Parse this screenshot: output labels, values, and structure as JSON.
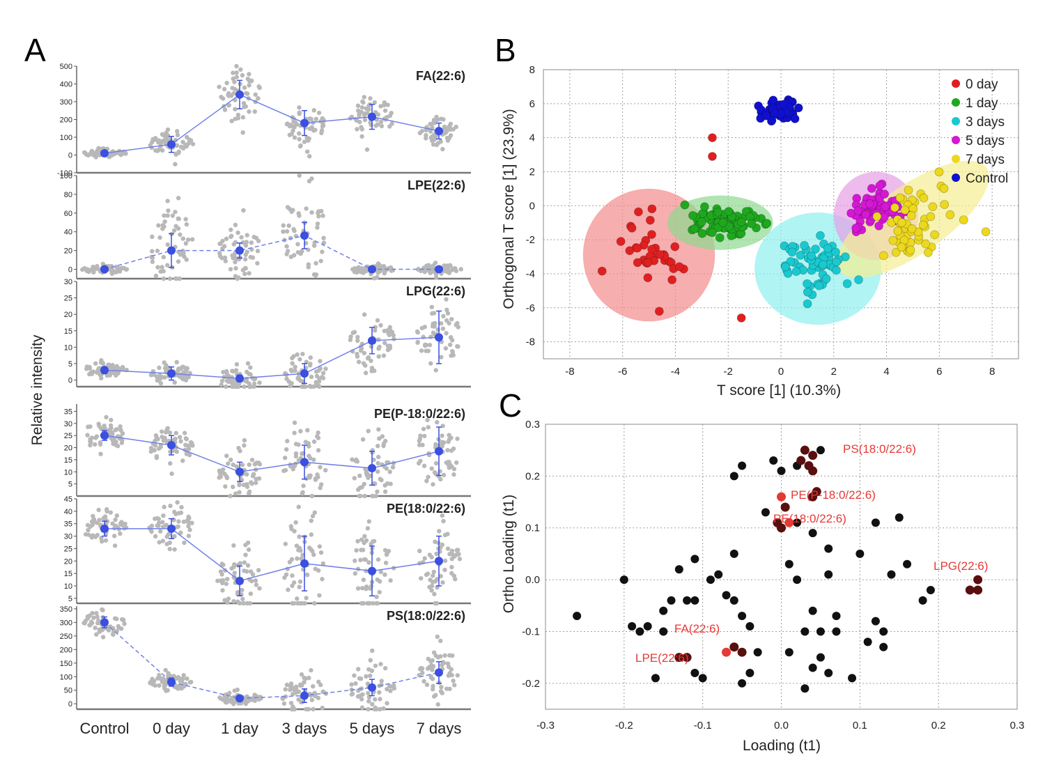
{
  "figure": {
    "panel_labels": [
      "A",
      "B",
      "C"
    ],
    "colors": {
      "line_blue": "#3b4fe0",
      "dot_gray": "#b8b8b8",
      "c_black": "#111111",
      "c_dark": "#5a0f0f",
      "c_red": "#e53935"
    }
  },
  "chart_data": [
    {
      "id": "A",
      "type": "line",
      "title": "Panel A",
      "ylabel": "Relative intensity",
      "categories": [
        "Control",
        "0 day",
        "1 day",
        "3 days",
        "5 days",
        "7 days"
      ],
      "subplots": [
        {
          "name": "FA(22:6)",
          "ylim": [
            -100,
            500
          ],
          "ticks": [
            -100,
            0,
            100,
            200,
            300,
            400,
            500
          ],
          "tick_labels": [
            "-100",
            "0",
            "100",
            "200",
            "300",
            "400",
            "500"
          ],
          "means": [
            10,
            60,
            340,
            180,
            215,
            135
          ],
          "sd": [
            10,
            45,
            80,
            70,
            70,
            45
          ],
          "spread": [
            20,
            60,
            140,
            110,
            110,
            60
          ],
          "dash": false
        },
        {
          "name": "LPE(22:6)",
          "ylim": [
            -10,
            100
          ],
          "ticks": [
            0,
            20,
            40,
            60,
            80,
            100
          ],
          "tick_labels": [
            "0",
            "20",
            "40",
            "60",
            "80",
            "100"
          ],
          "means": [
            0,
            20,
            20,
            36,
            0,
            0
          ],
          "sd": [
            2,
            18,
            8,
            14,
            2,
            2
          ],
          "spread": [
            4,
            45,
            25,
            50,
            5,
            5
          ],
          "dash": true
        },
        {
          "name": "LPG(22:6)",
          "ylim": [
            -2,
            30
          ],
          "ticks": [
            0,
            5,
            10,
            15,
            20,
            25,
            30
          ],
          "tick_labels": [
            "0",
            "5",
            "10",
            "15",
            "20",
            "25",
            "30"
          ],
          "means": [
            3,
            2,
            0.5,
            2,
            12,
            13
          ],
          "sd": [
            1,
            2,
            1,
            3,
            4,
            8
          ],
          "spread": [
            2,
            3,
            4,
            6,
            8,
            9
          ],
          "dash": false
        },
        {
          "name": "PE(P-18:0/22:6)",
          "ylim": [
            0,
            38
          ],
          "ticks": [
            5,
            10,
            15,
            20,
            25,
            30,
            35
          ],
          "tick_labels": [
            "5",
            "10",
            "15",
            "20",
            "25",
            "30",
            "35"
          ],
          "means": [
            25,
            21,
            10,
            14,
            11.5,
            18.5
          ],
          "sd": [
            2,
            4,
            4,
            7,
            7,
            10
          ],
          "spread": [
            6,
            8,
            9,
            16,
            14,
            14
          ],
          "dash": false
        },
        {
          "name": "PE(18:0/22:6)",
          "ylim": [
            3,
            45
          ],
          "ticks": [
            5,
            10,
            15,
            20,
            25,
            30,
            35,
            40,
            45
          ],
          "tick_labels": [
            "5",
            "10",
            "15",
            "20",
            "25",
            "30",
            "35",
            "40",
            "45"
          ],
          "means": [
            33,
            33,
            12,
            19,
            16,
            20
          ],
          "sd": [
            3,
            4,
            6,
            11,
            10,
            10
          ],
          "spread": [
            7,
            9,
            14,
            20,
            16,
            14
          ],
          "dash": false
        },
        {
          "name": "PS(18:0/22:6)",
          "ylim": [
            -20,
            360
          ],
          "ticks": [
            0,
            50,
            100,
            150,
            200,
            250,
            300,
            350
          ],
          "tick_labels": [
            "0",
            "50",
            "100",
            "150",
            "200",
            "250",
            "300",
            "350"
          ],
          "means": [
            300,
            80,
            20,
            30,
            60,
            115
          ],
          "sd": [
            20,
            15,
            10,
            25,
            30,
            40
          ],
          "spread": [
            40,
            30,
            20,
            90,
            90,
            80
          ],
          "dash": true
        }
      ]
    },
    {
      "id": "B",
      "type": "scatter",
      "xlabel": "T score [1] (10.3%)",
      "ylabel": "Orthogonal T score [1] (23.9%)",
      "xlim": [
        -9,
        9
      ],
      "ylim": [
        -9,
        8
      ],
      "xticks": [
        -8,
        -6,
        -4,
        -2,
        0,
        2,
        4,
        6,
        8
      ],
      "yticks": [
        -8,
        -6,
        -4,
        -2,
        0,
        2,
        4,
        6,
        8
      ],
      "series": [
        {
          "name": "0 day",
          "color": "#e02020",
          "center": [
            -5.0,
            -2.8
          ],
          "spread": [
            1.0,
            1.8
          ],
          "n": 36,
          "ellipse": {
            "cx": -5.0,
            "cy": -2.9,
            "rx": 2.5,
            "ry": 3.9,
            "angle": 0,
            "fill": "#f28b8b"
          },
          "extra": [
            [
              -2.6,
              4.0
            ],
            [
              -2.6,
              2.9
            ],
            [
              -1.5,
              -6.6
            ]
          ]
        },
        {
          "name": "1 day",
          "color": "#1fa81f",
          "center": [
            -2.3,
            -0.9
          ],
          "spread": [
            1.2,
            0.7
          ],
          "n": 80,
          "ellipse": {
            "cx": -2.3,
            "cy": -1.0,
            "rx": 2.0,
            "ry": 1.6,
            "angle": 0,
            "fill": "#8fd88f"
          }
        },
        {
          "name": "3 days",
          "color": "#19c9cf",
          "center": [
            1.4,
            -3.6
          ],
          "spread": [
            1.2,
            1.3
          ],
          "n": 60,
          "ellipse": {
            "cx": 1.4,
            "cy": -3.7,
            "rx": 2.4,
            "ry": 3.3,
            "angle": 0,
            "fill": "#8ef0f0"
          }
        },
        {
          "name": "5 days",
          "color": "#d418d4",
          "center": [
            3.6,
            -0.3
          ],
          "spread": [
            0.7,
            0.9
          ],
          "n": 70,
          "ellipse": {
            "cx": 3.6,
            "cy": -0.6,
            "rx": 1.6,
            "ry": 2.6,
            "angle": 0,
            "fill": "#e6a0e6"
          }
        },
        {
          "name": "7 days",
          "color": "#ecd81c",
          "center": [
            5.0,
            -1.0
          ],
          "spread": [
            1.3,
            1.5
          ],
          "n": 56,
          "ellipse": {
            "cx": 5.0,
            "cy": -0.8,
            "rx": 3.4,
            "ry": 2.0,
            "angle": -35,
            "fill": "#f5ee92"
          }
        },
        {
          "name": "Control",
          "color": "#1010d0",
          "center": [
            0.0,
            5.6
          ],
          "spread": [
            0.6,
            0.4
          ],
          "n": 60
        }
      ]
    },
    {
      "id": "C",
      "type": "scatter",
      "xlabel": "Loading (t1)",
      "ylabel": "Ortho Loading (t1)",
      "xlim": [
        -0.3,
        0.3
      ],
      "ylim": [
        -0.25,
        0.3
      ],
      "xticks": [
        -0.3,
        -0.2,
        -0.1,
        0.0,
        0.1,
        0.2,
        0.3
      ],
      "xtick_labels": [
        "-0.3",
        "-0.2",
        "-0.1",
        "0.0",
        "0.1",
        "0.2",
        "0.3"
      ],
      "yticks": [
        -0.2,
        -0.1,
        0.0,
        0.1,
        0.2,
        0.3
      ],
      "ytick_labels": [
        "-0.2",
        "-0.1",
        "0.0",
        "0.1",
        "0.2",
        "0.3"
      ],
      "points": [
        [
          -0.26,
          -0.07
        ],
        [
          -0.2,
          0.0
        ],
        [
          -0.19,
          -0.09
        ],
        [
          -0.18,
          -0.1
        ],
        [
          -0.17,
          -0.09
        ],
        [
          -0.16,
          -0.19
        ],
        [
          -0.15,
          -0.06
        ],
        [
          -0.14,
          -0.04
        ],
        [
          -0.13,
          0.02
        ],
        [
          -0.12,
          -0.04
        ],
        [
          -0.11,
          -0.04
        ],
        [
          -0.11,
          -0.18
        ],
        [
          -0.1,
          -0.19
        ],
        [
          -0.11,
          0.04
        ],
        [
          -0.09,
          0.0
        ],
        [
          -0.08,
          0.01
        ],
        [
          -0.07,
          -0.03
        ],
        [
          -0.06,
          0.05
        ],
        [
          -0.06,
          -0.04
        ],
        [
          -0.05,
          -0.07
        ],
        [
          -0.05,
          -0.2
        ],
        [
          -0.04,
          -0.18
        ],
        [
          -0.04,
          -0.09
        ],
        [
          -0.03,
          -0.14
        ],
        [
          -0.06,
          0.2
        ],
        [
          -0.05,
          0.22
        ],
        [
          -0.02,
          0.13
        ],
        [
          -0.01,
          0.23
        ],
        [
          0.0,
          0.21
        ],
        [
          0.01,
          -0.14
        ],
        [
          0.01,
          0.03
        ],
        [
          0.02,
          0.11
        ],
        [
          0.02,
          0.0
        ],
        [
          0.03,
          -0.21
        ],
        [
          0.03,
          -0.1
        ],
        [
          0.04,
          -0.06
        ],
        [
          0.04,
          -0.17
        ],
        [
          0.04,
          0.09
        ],
        [
          0.05,
          -0.1
        ],
        [
          0.05,
          -0.15
        ],
        [
          0.05,
          0.25
        ],
        [
          0.06,
          0.06
        ],
        [
          0.06,
          0.01
        ],
        [
          0.07,
          -0.07
        ],
        [
          0.07,
          -0.1
        ],
        [
          0.09,
          -0.19
        ],
        [
          0.1,
          0.05
        ],
        [
          0.11,
          -0.12
        ],
        [
          0.12,
          -0.08
        ],
        [
          0.12,
          0.11
        ],
        [
          0.13,
          -0.1
        ],
        [
          0.13,
          -0.13
        ],
        [
          0.14,
          0.01
        ],
        [
          0.15,
          0.12
        ],
        [
          0.16,
          0.03
        ],
        [
          0.18,
          -0.04
        ],
        [
          0.19,
          -0.02
        ],
        [
          0.02,
          0.22
        ],
        [
          -0.15,
          -0.1
        ],
        [
          0.06,
          -0.18
        ]
      ],
      "dark_points": [
        [
          0.03,
          0.25
        ],
        [
          0.04,
          0.24
        ],
        [
          0.025,
          0.23
        ],
        [
          0.035,
          0.22
        ],
        [
          0.04,
          0.21
        ],
        [
          0.045,
          0.17
        ],
        [
          0.04,
          0.16
        ],
        [
          0.005,
          0.14
        ],
        [
          -0.005,
          0.11
        ],
        [
          0.0,
          0.1
        ],
        [
          -0.13,
          -0.15
        ],
        [
          -0.12,
          -0.15
        ],
        [
          -0.06,
          -0.13
        ],
        [
          -0.05,
          -0.14
        ],
        [
          0.24,
          -0.02
        ],
        [
          0.25,
          -0.02
        ],
        [
          0.25,
          0.0
        ]
      ],
      "red_points": [
        [
          -0.0,
          0.16
        ],
        [
          -0.07,
          -0.14
        ],
        [
          0.01,
          0.11
        ]
      ],
      "labels": [
        "PS(18:0/22:6)",
        "PE(P-18:0/22:6)",
        "PE(18:0/22:6)",
        "LPG(22:6)",
        "FA(22:6)",
        "LPE(22:6)"
      ]
    }
  ]
}
